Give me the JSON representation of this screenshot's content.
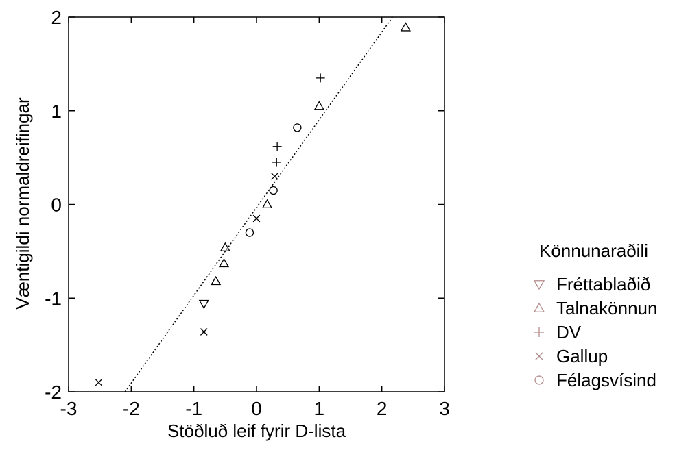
{
  "chart_data": {
    "type": "scatter",
    "xlabel": "Stöðluð leif fyrir D-lista",
    "ylabel": "Væntigildi normaldreifingar",
    "xlim": [
      -3,
      3
    ],
    "ylim": [
      -2,
      2
    ],
    "xticks": [
      -3,
      -2,
      -1,
      0,
      1,
      2,
      3
    ],
    "yticks": [
      -2,
      -1,
      0,
      1,
      2
    ],
    "xtick_labels": [
      "-3",
      "-2",
      "-1",
      "0",
      "1",
      "2",
      "3"
    ],
    "ytick_labels": [
      "-2",
      "-1",
      "0",
      "1",
      "2"
    ],
    "legend": {
      "title": "Könnunaraðili",
      "placement": "right"
    },
    "reference_line": {
      "style": "dotted",
      "points": [
        [
          -2.1,
          -2.0
        ],
        [
          2.17,
          2.0
        ]
      ]
    },
    "series": [
      {
        "name": "Fréttablaðið",
        "marker": "triangle-down",
        "points": [
          [
            -0.84,
            -1.06
          ]
        ]
      },
      {
        "name": "Talnakönnun",
        "marker": "triangle-up",
        "points": [
          [
            -0.5,
            -0.46
          ],
          [
            -0.52,
            -0.63
          ],
          [
            -0.65,
            -0.82
          ],
          [
            0.17,
            0.0
          ],
          [
            1.0,
            1.05
          ],
          [
            2.38,
            1.89
          ]
        ]
      },
      {
        "name": "DV",
        "marker": "plus",
        "points": [
          [
            0.33,
            0.62
          ],
          [
            0.32,
            0.45
          ],
          [
            1.02,
            1.35
          ]
        ]
      },
      {
        "name": "Gallup",
        "marker": "cross",
        "points": [
          [
            -2.52,
            -1.9
          ],
          [
            -0.84,
            -1.36
          ],
          [
            0.0,
            -0.15
          ],
          [
            0.29,
            0.3
          ]
        ]
      },
      {
        "name": "Félagsvísind",
        "marker": "circle",
        "points": [
          [
            -0.11,
            -0.3
          ],
          [
            0.27,
            0.15
          ],
          [
            0.65,
            0.82
          ]
        ]
      }
    ],
    "colors": {
      "axis": "#000000",
      "marker": "#000000",
      "legend_marker": "#b58c8c"
    }
  }
}
